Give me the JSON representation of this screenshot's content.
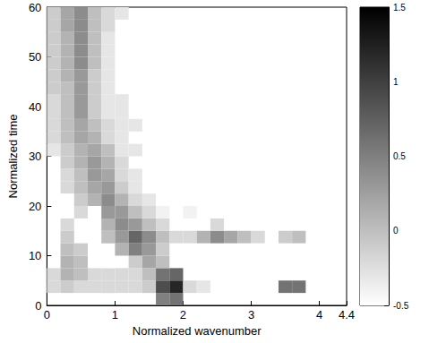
{
  "chart_data": {
    "type": "heatmap",
    "x_label": "Normalized wavenumber",
    "y_label": "Normalized time",
    "xlim": [
      0,
      4.4
    ],
    "xticks": [
      0,
      1,
      2,
      3,
      4
    ],
    "ylim": [
      0,
      60
    ],
    "yticks": [
      0,
      10,
      20,
      30,
      40,
      50,
      60
    ],
    "cell_width": 0.2,
    "cell_height": 2.5,
    "cells": [
      [
        1.7,
        1.25,
        0.5
      ],
      [
        1.9,
        1.25,
        0.6
      ],
      [
        0.1,
        3.75,
        -0.2
      ],
      [
        0.3,
        3.75,
        -0.1
      ],
      [
        0.5,
        3.75,
        -0.2
      ],
      [
        0.7,
        3.75,
        -0.2
      ],
      [
        0.9,
        3.75,
        -0.2
      ],
      [
        1.1,
        3.75,
        -0.2
      ],
      [
        1.3,
        3.75,
        -0.2
      ],
      [
        1.5,
        3.75,
        -0.1
      ],
      [
        1.7,
        3.75,
        0.9
      ],
      [
        1.9,
        3.75,
        1.2
      ],
      [
        2.1,
        3.75,
        -0.2
      ],
      [
        2.3,
        3.75,
        -0.3
      ],
      [
        3.5,
        3.75,
        0.6
      ],
      [
        3.7,
        3.75,
        0.6
      ],
      [
        0.1,
        6.25,
        -0.2
      ],
      [
        0.3,
        6.25,
        0.1
      ],
      [
        0.5,
        6.25,
        0.0
      ],
      [
        0.7,
        6.25,
        -0.2
      ],
      [
        0.9,
        6.25,
        -0.2
      ],
      [
        1.1,
        6.25,
        -0.2
      ],
      [
        1.3,
        6.25,
        -0.2
      ],
      [
        1.5,
        6.25,
        0.0
      ],
      [
        1.7,
        6.25,
        0.6
      ],
      [
        1.9,
        6.25,
        0.7
      ],
      [
        0.3,
        8.75,
        0.1
      ],
      [
        0.5,
        8.75,
        0.0
      ],
      [
        1.3,
        8.75,
        -0.1
      ],
      [
        1.5,
        8.75,
        0.2
      ],
      [
        1.7,
        8.75,
        0.0
      ],
      [
        0.3,
        11.25,
        0.0
      ],
      [
        0.5,
        11.25,
        -0.1
      ],
      [
        1.1,
        11.25,
        0.1
      ],
      [
        1.3,
        11.25,
        0.5
      ],
      [
        1.5,
        11.25,
        0.3
      ],
      [
        1.7,
        11.25,
        -0.1
      ],
      [
        0.3,
        13.75,
        -0.1
      ],
      [
        0.9,
        13.75,
        0.0
      ],
      [
        1.1,
        13.75,
        0.3
      ],
      [
        1.3,
        13.75,
        0.7
      ],
      [
        1.5,
        13.75,
        0.4
      ],
      [
        1.7,
        13.75,
        0.0
      ],
      [
        1.9,
        13.75,
        -0.2
      ],
      [
        2.1,
        13.75,
        -0.2
      ],
      [
        2.3,
        13.75,
        0.1
      ],
      [
        2.5,
        13.75,
        0.4
      ],
      [
        2.7,
        13.75,
        0.2
      ],
      [
        2.9,
        13.75,
        0.0
      ],
      [
        3.1,
        13.75,
        -0.2
      ],
      [
        3.5,
        13.75,
        -0.1
      ],
      [
        3.7,
        13.75,
        0.0
      ],
      [
        0.3,
        16.25,
        -0.2
      ],
      [
        0.9,
        16.25,
        0.1
      ],
      [
        1.1,
        16.25,
        0.4
      ],
      [
        1.3,
        16.25,
        0.3
      ],
      [
        1.5,
        16.25,
        0.0
      ],
      [
        1.7,
        16.25,
        -0.2
      ],
      [
        2.5,
        16.25,
        -0.2
      ],
      [
        0.5,
        18.75,
        -0.2
      ],
      [
        0.9,
        18.75,
        0.3
      ],
      [
        1.1,
        18.75,
        0.3
      ],
      [
        1.3,
        18.75,
        0.0
      ],
      [
        1.5,
        18.75,
        -0.2
      ],
      [
        1.7,
        18.75,
        -0.4
      ],
      [
        2.1,
        18.75,
        -0.4
      ],
      [
        0.5,
        21.25,
        -0.1
      ],
      [
        0.7,
        21.25,
        0.1
      ],
      [
        0.9,
        21.25,
        0.4
      ],
      [
        1.1,
        21.25,
        0.1
      ],
      [
        1.3,
        21.25,
        -0.2
      ],
      [
        1.5,
        21.25,
        -0.3
      ],
      [
        0.3,
        23.75,
        -0.2
      ],
      [
        0.5,
        23.75,
        0.0
      ],
      [
        0.7,
        23.75,
        0.2
      ],
      [
        0.9,
        23.75,
        0.3
      ],
      [
        1.1,
        23.75,
        -0.1
      ],
      [
        1.3,
        23.75,
        -0.3
      ],
      [
        0.3,
        26.25,
        -0.2
      ],
      [
        0.5,
        26.25,
        0.0
      ],
      [
        0.7,
        26.25,
        0.3
      ],
      [
        0.9,
        26.25,
        0.2
      ],
      [
        1.1,
        26.25,
        -0.2
      ],
      [
        1.3,
        26.25,
        -0.3
      ],
      [
        0.3,
        28.75,
        -0.1
      ],
      [
        0.5,
        28.75,
        0.1
      ],
      [
        0.7,
        28.75,
        0.3
      ],
      [
        0.9,
        28.75,
        0.1
      ],
      [
        1.1,
        28.75,
        -0.2
      ],
      [
        0.1,
        31.25,
        -0.3
      ],
      [
        0.3,
        31.25,
        -0.1
      ],
      [
        0.5,
        31.25,
        0.1
      ],
      [
        0.7,
        31.25,
        0.2
      ],
      [
        0.9,
        31.25,
        0.0
      ],
      [
        1.1,
        31.25,
        -0.3
      ],
      [
        1.3,
        31.25,
        -0.3
      ],
      [
        0.1,
        33.75,
        -0.2
      ],
      [
        0.3,
        33.75,
        0.0
      ],
      [
        0.5,
        33.75,
        0.2
      ],
      [
        0.7,
        33.75,
        0.1
      ],
      [
        0.9,
        33.75,
        -0.2
      ],
      [
        1.1,
        33.75,
        -0.3
      ],
      [
        0.1,
        36.25,
        -0.2
      ],
      [
        0.3,
        36.25,
        0.0
      ],
      [
        0.5,
        36.25,
        0.2
      ],
      [
        0.7,
        36.25,
        0.0
      ],
      [
        0.9,
        36.25,
        -0.2
      ],
      [
        1.1,
        36.25,
        -0.3
      ],
      [
        1.3,
        36.25,
        -0.3
      ],
      [
        0.1,
        38.75,
        -0.2
      ],
      [
        0.3,
        38.75,
        0.0
      ],
      [
        0.5,
        38.75,
        0.3
      ],
      [
        0.7,
        38.75,
        -0.1
      ],
      [
        0.9,
        38.75,
        -0.3
      ],
      [
        1.1,
        38.75,
        -0.3
      ],
      [
        0.1,
        41.25,
        -0.2
      ],
      [
        0.3,
        41.25,
        0.0
      ],
      [
        0.5,
        41.25,
        0.3
      ],
      [
        0.7,
        41.25,
        -0.1
      ],
      [
        0.9,
        41.25,
        -0.3
      ],
      [
        1.1,
        41.25,
        -0.3
      ],
      [
        0.1,
        43.75,
        -0.1
      ],
      [
        0.3,
        43.75,
        0.0
      ],
      [
        0.5,
        43.75,
        0.3
      ],
      [
        0.7,
        43.75,
        -0.1
      ],
      [
        0.9,
        43.75,
        -0.3
      ],
      [
        0.1,
        46.25,
        -0.1
      ],
      [
        0.3,
        46.25,
        0.1
      ],
      [
        0.5,
        46.25,
        0.3
      ],
      [
        0.7,
        46.25,
        -0.1
      ],
      [
        0.9,
        46.25,
        -0.3
      ],
      [
        0.1,
        48.75,
        -0.1
      ],
      [
        0.3,
        48.75,
        0.1
      ],
      [
        0.5,
        48.75,
        0.4
      ],
      [
        0.7,
        48.75,
        0.0
      ],
      [
        0.9,
        48.75,
        -0.3
      ],
      [
        0.1,
        51.25,
        -0.1
      ],
      [
        0.3,
        51.25,
        0.1
      ],
      [
        0.5,
        51.25,
        0.4
      ],
      [
        0.7,
        51.25,
        0.0
      ],
      [
        0.9,
        51.25,
        -0.3
      ],
      [
        0.1,
        53.75,
        -0.1
      ],
      [
        0.3,
        53.75,
        0.1
      ],
      [
        0.5,
        53.75,
        0.4
      ],
      [
        0.7,
        53.75,
        0.0
      ],
      [
        0.9,
        53.75,
        -0.3
      ],
      [
        0.1,
        56.25,
        -0.1
      ],
      [
        0.3,
        56.25,
        0.2
      ],
      [
        0.5,
        56.25,
        0.4
      ],
      [
        0.7,
        56.25,
        0.0
      ],
      [
        0.9,
        56.25,
        -0.2
      ],
      [
        0.1,
        58.75,
        -0.1
      ],
      [
        0.3,
        58.75,
        0.2
      ],
      [
        0.5,
        58.75,
        0.4
      ],
      [
        0.7,
        58.75,
        0.0
      ],
      [
        0.9,
        58.75,
        -0.2
      ],
      [
        1.1,
        58.75,
        -0.3
      ]
    ],
    "colorbar_range": [
      -0.5,
      1.5
    ],
    "colorbar_ticks": [
      -0.5,
      0,
      0.5,
      1,
      1.5
    ],
    "color": "gray"
  }
}
